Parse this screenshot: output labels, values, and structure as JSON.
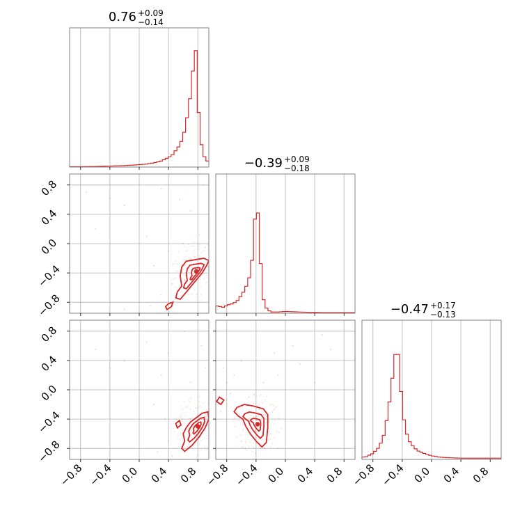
{
  "chart_data": {
    "type": "corner",
    "color": "#d62728",
    "xlim": [
      -0.95,
      0.95
    ],
    "ylim": [
      -0.95,
      0.95
    ],
    "ticks": [
      -0.8,
      -0.4,
      0.0,
      0.4,
      0.8
    ],
    "tick_labels": [
      "−0.8",
      "−0.4",
      "0.0",
      "0.4",
      "0.8"
    ],
    "grid": true,
    "parameters": [
      {
        "summary": {
          "median": "0.76",
          "plus": "+0.09",
          "minus": "−0.14"
        },
        "histogram": {
          "x": [
            -0.8,
            -0.6,
            -0.4,
            -0.3,
            -0.2,
            -0.1,
            0.0,
            0.1,
            0.2,
            0.3,
            0.4,
            0.45,
            0.5,
            0.55,
            0.6,
            0.65,
            0.7,
            0.74,
            0.77,
            0.8,
            0.84,
            0.88,
            0.92
          ],
          "density": [
            0.003,
            0.005,
            0.008,
            0.01,
            0.012,
            0.016,
            0.02,
            0.025,
            0.035,
            0.05,
            0.08,
            0.1,
            0.14,
            0.18,
            0.25,
            0.4,
            0.6,
            0.85,
            1.0,
            0.55,
            0.22,
            0.1,
            0.05
          ]
        }
      },
      {
        "summary": {
          "median": "−0.39",
          "plus": "+0.09",
          "minus": "−0.18"
        },
        "histogram": {
          "x": [
            -0.92,
            -0.85,
            -0.78,
            -0.72,
            -0.66,
            -0.6,
            -0.55,
            -0.5,
            -0.46,
            -0.42,
            -0.39,
            -0.36,
            -0.33,
            -0.3,
            -0.27,
            -0.2,
            -0.1,
            0.0,
            0.2,
            0.5,
            0.8
          ],
          "density": [
            0.06,
            0.05,
            0.07,
            0.08,
            0.1,
            0.15,
            0.2,
            0.28,
            0.4,
            0.75,
            1.0,
            0.65,
            0.35,
            0.12,
            0.05,
            0.01,
            0.01,
            0.015,
            0.01,
            0.005,
            0.005
          ]
        }
      },
      {
        "summary": {
          "median": "−0.47",
          "plus": "+0.17",
          "minus": "−0.13"
        },
        "histogram": {
          "x": [
            -0.9,
            -0.8,
            -0.72,
            -0.66,
            -0.62,
            -0.58,
            -0.54,
            -0.5,
            -0.47,
            -0.44,
            -0.4,
            -0.36,
            -0.3,
            -0.24,
            -0.18,
            -0.1,
            0.0,
            0.1,
            0.2,
            0.4,
            0.6,
            0.8
          ],
          "density": [
            0.02,
            0.05,
            0.1,
            0.18,
            0.3,
            0.45,
            0.65,
            0.85,
            1.0,
            0.75,
            0.45,
            0.25,
            0.15,
            0.1,
            0.07,
            0.05,
            0.03,
            0.02,
            0.015,
            0.01,
            0.01,
            0.01
          ]
        }
      }
    ],
    "pairs": [
      {
        "row": 1,
        "col": 0,
        "center": [
          0.78,
          -0.38
        ],
        "level_scales": [
          1.0,
          0.62,
          0.3
        ],
        "contour_outer": [
          [
            0.58,
            -0.58
          ],
          [
            0.52,
            -0.66
          ],
          [
            0.5,
            -0.74
          ],
          [
            0.56,
            -0.76
          ],
          [
            0.66,
            -0.64
          ],
          [
            0.76,
            -0.52
          ],
          [
            0.86,
            -0.4
          ],
          [
            0.92,
            -0.3
          ],
          [
            0.95,
            -0.23
          ],
          [
            0.88,
            -0.2
          ],
          [
            0.76,
            -0.22
          ],
          [
            0.64,
            -0.24
          ],
          [
            0.58,
            -0.32
          ],
          [
            0.56,
            -0.44
          ]
        ],
        "tail_blob": [
          [
            0.44,
            -0.86
          ],
          [
            0.38,
            -0.9
          ],
          [
            0.36,
            -0.86
          ],
          [
            0.4,
            -0.82
          ],
          [
            0.46,
            -0.8
          ]
        ],
        "scatter": [
          [
            -0.72,
            0.7
          ],
          [
            -0.4,
            0.62
          ],
          [
            -0.2,
            0.52
          ],
          [
            0.3,
            0.75
          ],
          [
            0.55,
            0.6
          ],
          [
            0.7,
            0.45
          ],
          [
            0.88,
            0.8
          ],
          [
            -0.6,
            0.2
          ],
          [
            0.1,
            0.1
          ],
          [
            0.4,
            -0.1
          ],
          [
            0.6,
            0.0
          ],
          [
            0.2,
            -0.3
          ],
          [
            0.45,
            -0.55
          ],
          [
            0.3,
            -0.7
          ],
          [
            0.15,
            -0.85
          ],
          [
            -0.2,
            -0.9
          ],
          [
            0.65,
            -0.1
          ],
          [
            0.82,
            0.12
          ],
          [
            0.9,
            -0.05
          ]
        ]
      },
      {
        "row": 2,
        "col": 0,
        "center": [
          0.8,
          -0.5
        ],
        "level_scales": [
          1.0,
          0.62,
          0.3
        ],
        "contour_outer": [
          [
            0.62,
            -0.7
          ],
          [
            0.58,
            -0.8
          ],
          [
            0.62,
            -0.84
          ],
          [
            0.72,
            -0.76
          ],
          [
            0.82,
            -0.64
          ],
          [
            0.9,
            -0.52
          ],
          [
            0.95,
            -0.4
          ],
          [
            0.94,
            -0.3
          ],
          [
            0.86,
            -0.32
          ],
          [
            0.78,
            -0.38
          ],
          [
            0.7,
            -0.44
          ],
          [
            0.64,
            -0.52
          ],
          [
            0.6,
            -0.6
          ]
        ],
        "tail_blob": [
          [
            0.55,
            -0.42
          ],
          [
            0.5,
            -0.46
          ],
          [
            0.52,
            -0.52
          ],
          [
            0.57,
            -0.48
          ]
        ],
        "scatter": [
          [
            -0.6,
            0.55
          ],
          [
            -0.2,
            0.4
          ],
          [
            0.3,
            0.2
          ],
          [
            0.4,
            0.5
          ],
          [
            0.62,
            0.8
          ],
          [
            0.85,
            0.6
          ],
          [
            0.9,
            0.3
          ],
          [
            0.2,
            -0.2
          ],
          [
            0.35,
            -0.4
          ],
          [
            0.4,
            -0.7
          ],
          [
            0.45,
            -0.9
          ],
          [
            0.25,
            -0.85
          ],
          [
            -0.4,
            0.3
          ],
          [
            0.1,
            0.65
          ],
          [
            0.7,
            0.1
          ]
        ]
      },
      {
        "row": 2,
        "col": 1,
        "center": [
          -0.38,
          -0.47
        ],
        "level_scales": [
          1.0,
          0.62,
          0.3
        ],
        "contour_outer": [
          [
            -0.58,
            -0.4
          ],
          [
            -0.64,
            -0.36
          ],
          [
            -0.7,
            -0.3
          ],
          [
            -0.66,
            -0.24
          ],
          [
            -0.56,
            -0.2
          ],
          [
            -0.44,
            -0.22
          ],
          [
            -0.3,
            -0.26
          ],
          [
            -0.24,
            -0.34
          ],
          [
            -0.24,
            -0.52
          ],
          [
            -0.26,
            -0.72
          ],
          [
            -0.32,
            -0.78
          ],
          [
            -0.4,
            -0.7
          ],
          [
            -0.48,
            -0.6
          ],
          [
            -0.54,
            -0.5
          ]
        ],
        "tail_blob": [
          [
            -0.9,
            -0.1
          ],
          [
            -0.94,
            -0.16
          ],
          [
            -0.88,
            -0.2
          ],
          [
            -0.84,
            -0.14
          ]
        ],
        "scatter": [
          [
            -0.85,
            0.3
          ],
          [
            -0.8,
            0.1
          ],
          [
            -0.75,
            -0.05
          ],
          [
            -0.7,
            0.2
          ],
          [
            -0.6,
            0.4
          ],
          [
            -0.5,
            -0.1
          ],
          [
            -0.3,
            0.1
          ],
          [
            -0.1,
            0.2
          ],
          [
            0.2,
            0.35
          ],
          [
            0.5,
            0.75
          ],
          [
            0.62,
            0.55
          ],
          [
            0.4,
            0.1
          ],
          [
            -0.2,
            -0.6
          ],
          [
            -0.1,
            -0.8
          ],
          [
            -0.6,
            -0.7
          ],
          [
            -0.88,
            -0.3
          ],
          [
            0.1,
            0.6
          ],
          [
            -0.15,
            0.5
          ]
        ]
      }
    ]
  }
}
